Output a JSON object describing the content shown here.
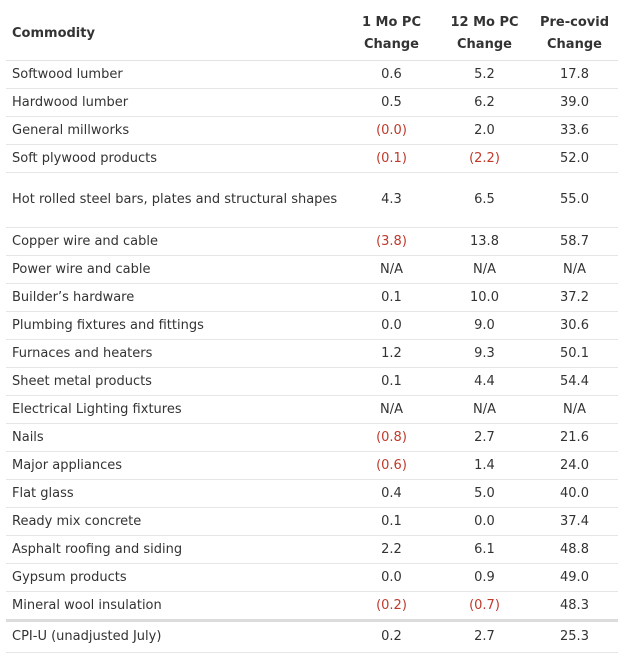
{
  "table": {
    "headers": [
      "Commodity",
      "1 Mo PC Change",
      "12 Mo PC Change",
      "Pre-covid Change"
    ],
    "rows": [
      {
        "commodity": "Softwood lumber",
        "mo1": "0.6",
        "mo12": "5.2",
        "precovid": "17.8"
      },
      {
        "commodity": "Hardwood lumber",
        "mo1": "0.5",
        "mo12": "6.2",
        "precovid": "39.0"
      },
      {
        "commodity": "General millworks",
        "mo1": "(0.0)",
        "mo12": "2.0",
        "precovid": "33.6"
      },
      {
        "commodity": "Soft plywood products",
        "mo1": "(0.1)",
        "mo12": "(2.2)",
        "precovid": "52.0"
      },
      {
        "commodity": "Hot rolled steel bars, plates and structural shapes",
        "mo1": "4.3",
        "mo12": "6.5",
        "precovid": "55.0"
      },
      {
        "commodity": "Copper wire and cable",
        "mo1": "(3.8)",
        "mo12": "13.8",
        "precovid": "58.7"
      },
      {
        "commodity": "Power wire and cable",
        "mo1": "N/A",
        "mo12": "N/A",
        "precovid": "N/A"
      },
      {
        "commodity": "Builder’s hardware",
        "mo1": "0.1",
        "mo12": "10.0",
        "precovid": "37.2"
      },
      {
        "commodity": "Plumbing fixtures and fittings",
        "mo1": "0.0",
        "mo12": "9.0",
        "precovid": "30.6"
      },
      {
        "commodity": "Furnaces and heaters",
        "mo1": "1.2",
        "mo12": "9.3",
        "precovid": "50.1"
      },
      {
        "commodity": "Sheet metal products",
        "mo1": "0.1",
        "mo12": "4.4",
        "precovid": "54.4"
      },
      {
        "commodity": "Electrical Lighting fixtures",
        "mo1": "N/A",
        "mo12": "N/A",
        "precovid": "N/A"
      },
      {
        "commodity": "Nails",
        "mo1": "(0.8)",
        "mo12": "2.7",
        "precovid": "21.6"
      },
      {
        "commodity": "Major appliances",
        "mo1": "(0.6)",
        "mo12": "1.4",
        "precovid": "24.0"
      },
      {
        "commodity": "Flat glass",
        "mo1": "0.4",
        "mo12": "5.0",
        "precovid": "40.0"
      },
      {
        "commodity": "Ready mix concrete",
        "mo1": "0.1",
        "mo12": "0.0",
        "precovid": "37.4"
      },
      {
        "commodity": "Asphalt roofing and siding",
        "mo1": "2.2",
        "mo12": "6.1",
        "precovid": "48.8"
      },
      {
        "commodity": "Gypsum products",
        "mo1": "0.0",
        "mo12": "0.9",
        "precovid": "49.0"
      },
      {
        "commodity": "Mineral wool insulation",
        "mo1": "(0.2)",
        "mo12": "(0.7)",
        "precovid": "48.3"
      }
    ],
    "total": {
      "commodity": "CPI-U (unadjusted July)",
      "mo1": "0.2",
      "mo12": "2.7",
      "precovid": "25.3"
    }
  },
  "colors": {
    "text": "#333333",
    "negative": "#c0392b",
    "border": "#e6e6e6"
  }
}
